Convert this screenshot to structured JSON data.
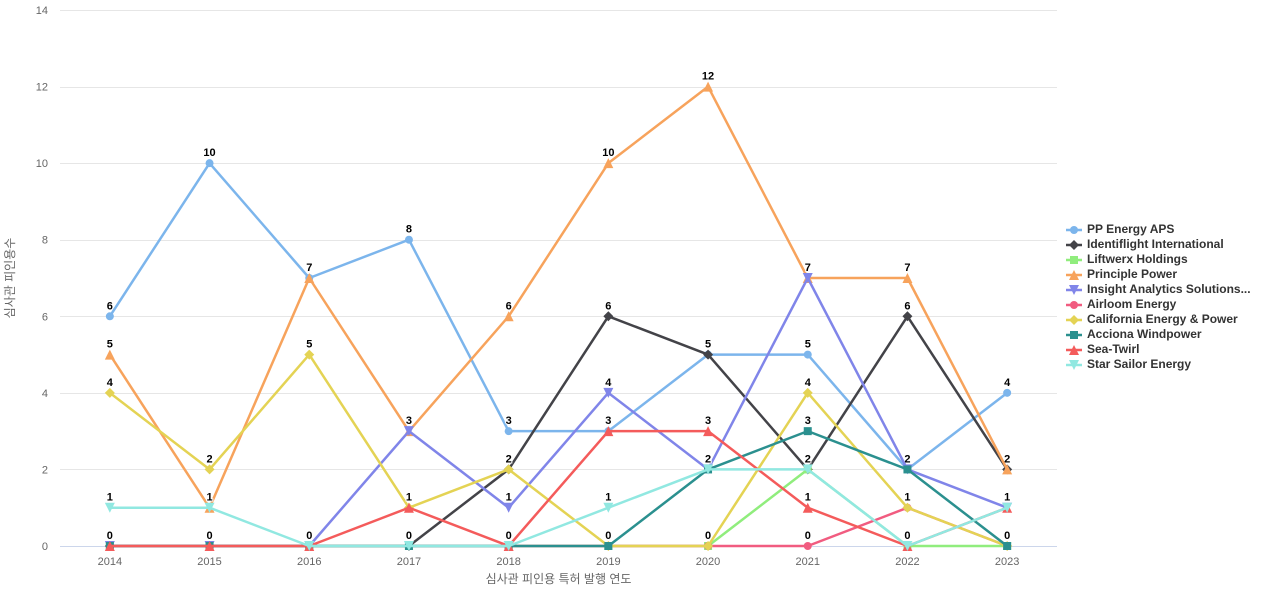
{
  "chart_data": {
    "type": "line",
    "title": "",
    "xlabel": "심사관 피인용 특허 발행 연도",
    "ylabel": "심사관 피인용수",
    "categories": [
      "2014",
      "2015",
      "2016",
      "2017",
      "2018",
      "2019",
      "2020",
      "2021",
      "2022",
      "2023"
    ],
    "ylim": [
      0,
      14
    ],
    "yticks": [
      0,
      2,
      4,
      6,
      8,
      10,
      12,
      14
    ],
    "grid": true,
    "legend_position": "right",
    "data_labels": true,
    "series": [
      {
        "name": "PP Energy APS",
        "color": "#7cb5ec",
        "marker": "circle",
        "values": [
          6,
          10,
          7,
          8,
          3,
          3,
          5,
          5,
          2,
          4
        ]
      },
      {
        "name": "Identiflight International",
        "color": "#434348",
        "marker": "diamond",
        "values": [
          0,
          0,
          0,
          0,
          2,
          6,
          5,
          2,
          6,
          2
        ]
      },
      {
        "name": "Liftwerx Holdings",
        "color": "#90ed7d",
        "marker": "square",
        "values": [
          0,
          0,
          0,
          0,
          0,
          0,
          0,
          2,
          0,
          0
        ]
      },
      {
        "name": "Principle Power",
        "color": "#f7a35c",
        "marker": "triangle",
        "values": [
          5,
          1,
          7,
          3,
          6,
          10,
          12,
          7,
          7,
          2
        ]
      },
      {
        "name": "Insight Analytics Solutions...",
        "color": "#8085e9",
        "marker": "triangle-down",
        "values": [
          0,
          0,
          0,
          3,
          1,
          4,
          2,
          7,
          2,
          1
        ]
      },
      {
        "name": "Airloom Energy",
        "color": "#f15c80",
        "marker": "circle",
        "values": [
          0,
          0,
          0,
          0,
          0,
          0,
          0,
          0,
          1,
          0
        ]
      },
      {
        "name": "California Energy & Power",
        "color": "#e4d354",
        "marker": "diamond",
        "values": [
          4,
          2,
          5,
          1,
          2,
          0,
          0,
          4,
          1,
          0
        ]
      },
      {
        "name": "Acciona Windpower",
        "color": "#2b908f",
        "marker": "square",
        "values": [
          0,
          0,
          0,
          0,
          0,
          0,
          2,
          3,
          2,
          0
        ]
      },
      {
        "name": "Sea-Twirl",
        "color": "#f45b5b",
        "marker": "triangle",
        "values": [
          0,
          0,
          0,
          1,
          0,
          3,
          3,
          1,
          0,
          1
        ]
      },
      {
        "name": "Star Sailor Energy",
        "color": "#91e8e1",
        "marker": "triangle-down",
        "values": [
          1,
          1,
          0,
          0,
          0,
          1,
          2,
          2,
          0,
          1
        ]
      }
    ],
    "style": {
      "grid_color": "#e6e6e6",
      "x_axis_line_color": "#ccd6eb",
      "tick_label_color": "#666666",
      "axis_title_color": "#666666",
      "legend_text_color": "#333333",
      "data_label_color": "#000000",
      "background": "#ffffff"
    }
  }
}
